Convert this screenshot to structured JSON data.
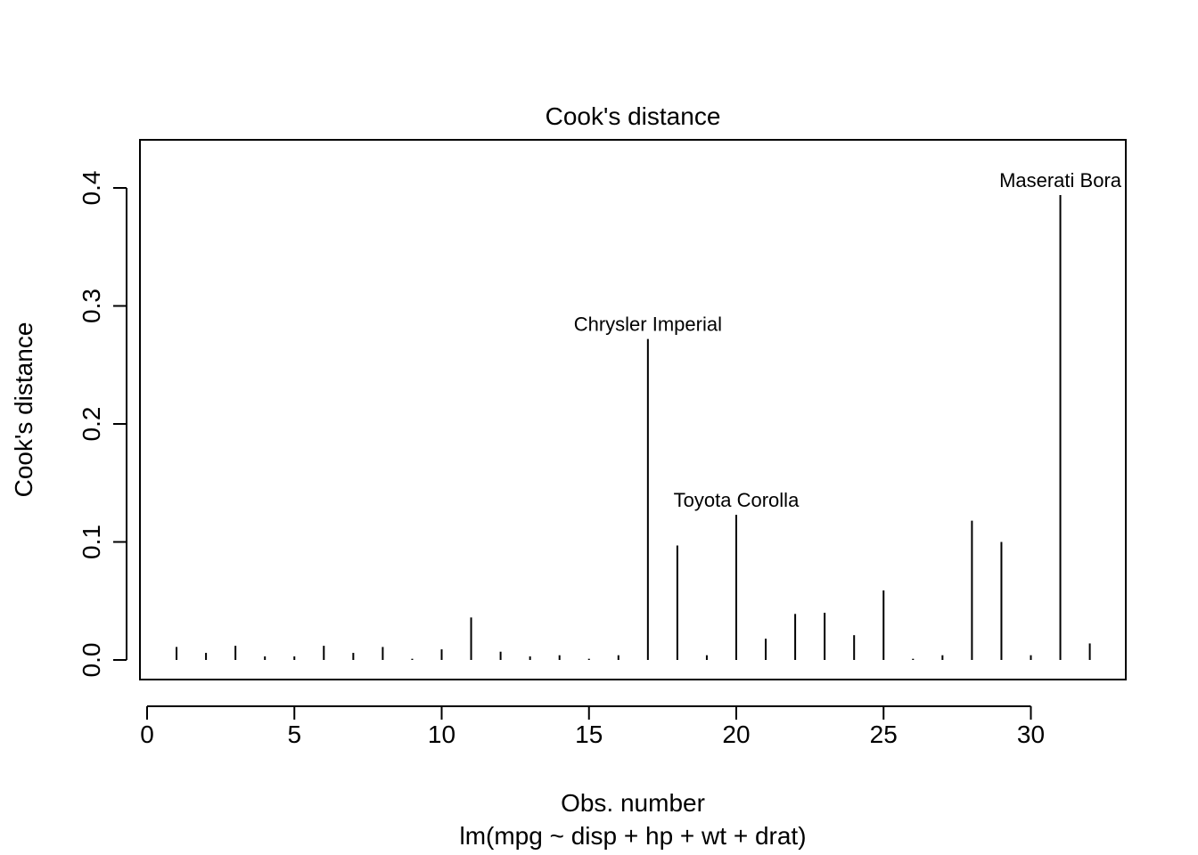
{
  "chart_data": {
    "type": "bar",
    "title": "Cook's distance",
    "xlabel": "Obs. number",
    "subtitle": "lm(mpg ~ disp + hp + wt + drat)",
    "ylabel": "Cook's distance",
    "xlim": [
      0,
      33
    ],
    "ylim": [
      0,
      0.42
    ],
    "x_ticks": [
      0,
      5,
      10,
      15,
      20,
      25,
      30
    ],
    "y_ticks": [
      0.0,
      0.1,
      0.2,
      0.3,
      0.4
    ],
    "y_tick_labels": [
      "0.0",
      "0.1",
      "0.2",
      "0.3",
      "0.4"
    ],
    "x": [
      1,
      2,
      3,
      4,
      5,
      6,
      7,
      8,
      9,
      10,
      11,
      12,
      13,
      14,
      15,
      16,
      17,
      18,
      19,
      20,
      21,
      22,
      23,
      24,
      25,
      26,
      27,
      28,
      29,
      30,
      31,
      32
    ],
    "values": [
      0.011,
      0.006,
      0.012,
      0.003,
      0.003,
      0.012,
      0.006,
      0.011,
      0.001,
      0.009,
      0.036,
      0.007,
      0.003,
      0.004,
      0.001,
      0.004,
      0.272,
      0.097,
      0.004,
      0.123,
      0.018,
      0.039,
      0.04,
      0.021,
      0.059,
      0.001,
      0.004,
      0.118,
      0.1,
      0.004,
      0.394,
      0.014
    ],
    "annotations": [
      {
        "x": 17,
        "label": "Chrysler Imperial"
      },
      {
        "x": 20,
        "label": "Toyota Corolla"
      },
      {
        "x": 31,
        "label": "Maserati Bora"
      }
    ],
    "grid": false,
    "legend": "none"
  }
}
